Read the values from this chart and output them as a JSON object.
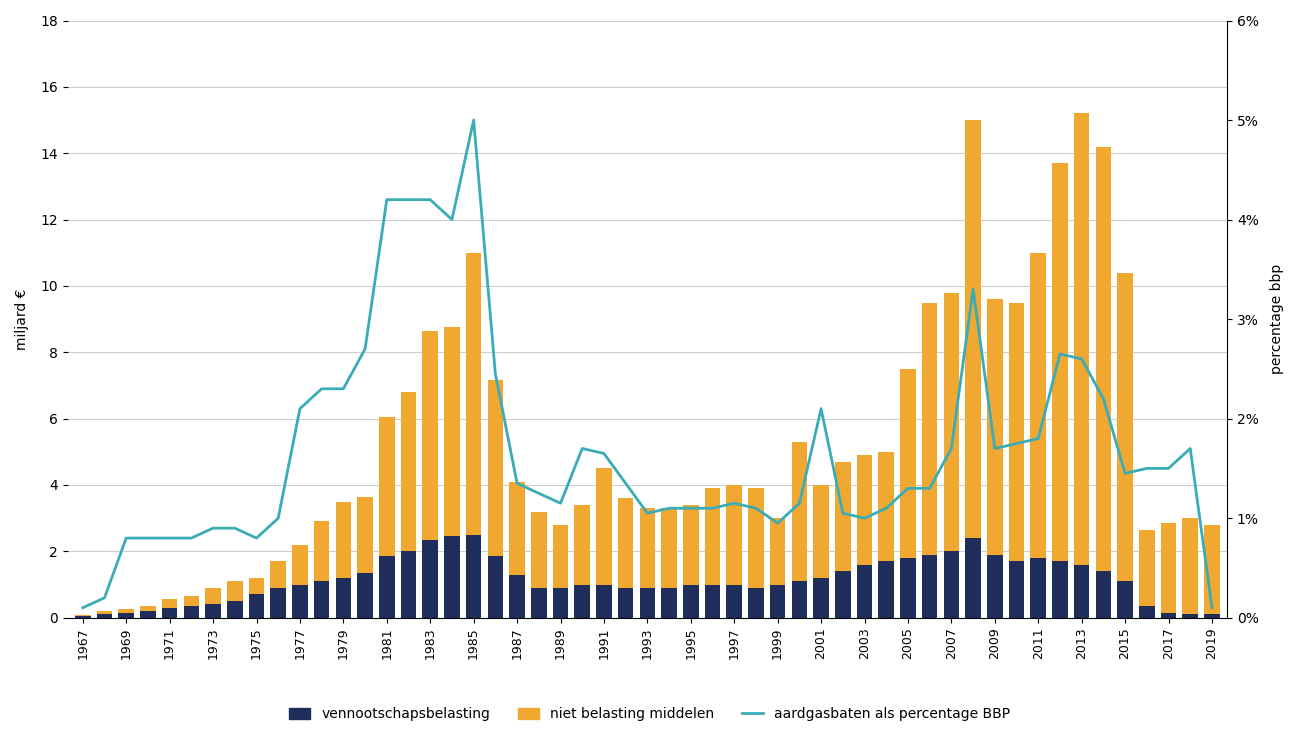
{
  "years": [
    1967,
    1968,
    1969,
    1970,
    1971,
    1972,
    1973,
    1974,
    1975,
    1976,
    1977,
    1978,
    1979,
    1980,
    1981,
    1982,
    1983,
    1984,
    1985,
    1986,
    1987,
    1988,
    1989,
    1990,
    1991,
    1992,
    1993,
    1994,
    1995,
    1996,
    1997,
    1998,
    1999,
    2000,
    2001,
    2002,
    2003,
    2004,
    2005,
    2006,
    2007,
    2008,
    2009,
    2010,
    2011,
    2012,
    2013,
    2014,
    2015,
    2016,
    2017,
    2018,
    2019
  ],
  "vennootschap": [
    0.05,
    0.1,
    0.15,
    0.2,
    0.3,
    0.35,
    0.4,
    0.5,
    0.7,
    0.9,
    1.0,
    1.1,
    1.2,
    1.35,
    1.85,
    2.0,
    2.35,
    2.45,
    2.5,
    1.85,
    1.3,
    0.9,
    0.9,
    1.0,
    1.0,
    0.9,
    0.9,
    0.9,
    1.0,
    1.0,
    1.0,
    0.9,
    1.0,
    1.1,
    1.2,
    1.4,
    1.6,
    1.7,
    1.8,
    1.9,
    2.0,
    2.4,
    1.9,
    1.7,
    1.8,
    1.7,
    1.6,
    1.4,
    1.1,
    0.35,
    0.15,
    0.1,
    0.1
  ],
  "niet_belasting": [
    0.02,
    0.1,
    0.1,
    0.15,
    0.25,
    0.3,
    0.5,
    0.6,
    0.5,
    0.8,
    1.2,
    1.8,
    2.3,
    2.3,
    4.2,
    4.8,
    6.3,
    6.3,
    8.5,
    5.3,
    2.8,
    2.3,
    1.9,
    2.4,
    3.5,
    2.7,
    2.4,
    2.4,
    2.4,
    2.9,
    3.0,
    3.0,
    2.0,
    4.2,
    2.8,
    3.3,
    3.3,
    3.3,
    5.7,
    7.6,
    7.8,
    12.6,
    7.7,
    7.8,
    9.2,
    12.0,
    13.6,
    12.8,
    9.3,
    2.3,
    2.7,
    2.9,
    2.7
  ],
  "pct_bbp": [
    0.001,
    0.002,
    0.008,
    0.008,
    0.008,
    0.008,
    0.009,
    0.009,
    0.008,
    0.01,
    0.021,
    0.023,
    0.023,
    0.027,
    0.042,
    0.042,
    0.042,
    0.04,
    0.05,
    0.0245,
    0.0135,
    0.0125,
    0.0115,
    0.017,
    0.0165,
    0.0135,
    0.0105,
    0.011,
    0.011,
    0.011,
    0.0115,
    0.011,
    0.0095,
    0.0115,
    0.021,
    0.0105,
    0.01,
    0.011,
    0.013,
    0.013,
    0.017,
    0.033,
    0.017,
    0.0175,
    0.018,
    0.0265,
    0.026,
    0.022,
    0.0145,
    0.015,
    0.015,
    0.017,
    0.001
  ],
  "bar_color_vennootschap": "#1e2d5a",
  "bar_color_niet_belasting": "#f0a830",
  "line_color": "#3aacb8",
  "background_color": "#ffffff",
  "ylabel_left": "miljard €",
  "ylabel_right": "percentage bbp",
  "ylim_left": [
    0,
    18
  ],
  "ylim_right": [
    0,
    0.06
  ],
  "yticks_left": [
    0,
    2,
    4,
    6,
    8,
    10,
    12,
    14,
    16,
    18
  ],
  "yticks_right": [
    0,
    0.01,
    0.02,
    0.03,
    0.04,
    0.05,
    0.06
  ],
  "ytick_labels_right": [
    "0%",
    "1%",
    "2%",
    "3%",
    "4%",
    "5%",
    "6%"
  ],
  "legend_labels": [
    "vennootschapsbelasting",
    "niet belasting middelen",
    "aardgasbaten als percentage BBP"
  ]
}
